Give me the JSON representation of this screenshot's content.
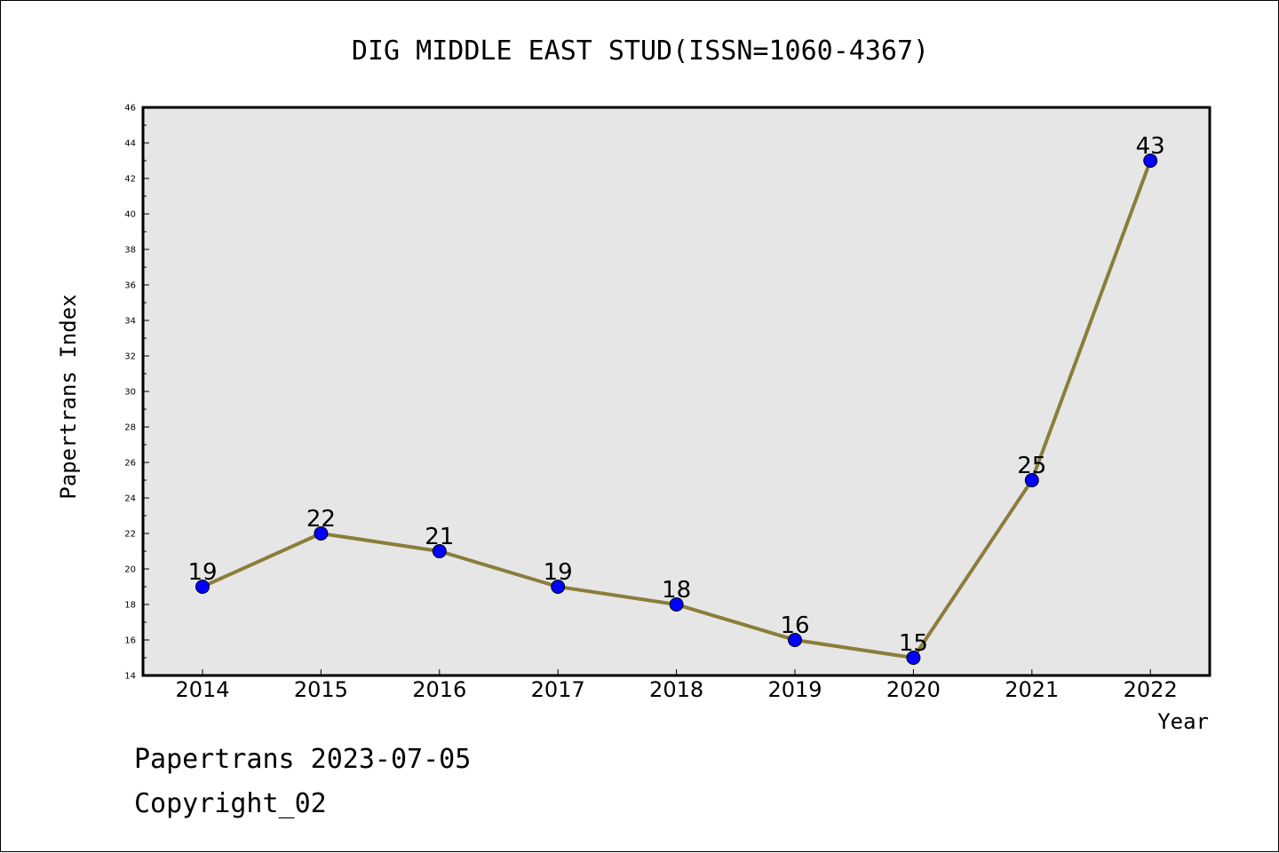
{
  "chart_data": {
    "type": "line",
    "title": "DIG MIDDLE EAST STUD(ISSN=1060-4367)",
    "xlabel": "Year",
    "ylabel": "Papertrans Index",
    "categories": [
      "2014",
      "2015",
      "2016",
      "2017",
      "2018",
      "2019",
      "2020",
      "2021",
      "2022"
    ],
    "series": [
      {
        "values": [
          19,
          22,
          21,
          19,
          18,
          16,
          15,
          25,
          43
        ]
      }
    ],
    "data_labels": [
      "19",
      "22",
      "21",
      "19",
      "18",
      "16",
      "15",
      "25",
      "43"
    ],
    "ylim": [
      14,
      46
    ],
    "y_ticks": [
      "14",
      "16",
      "18",
      "20",
      "22",
      "24",
      "26",
      "28",
      "30",
      "32",
      "34",
      "36",
      "38",
      "40",
      "42",
      "44",
      "46"
    ],
    "grid": false,
    "plot_background": "#e6e6e6",
    "line_color": "#8b7d3a",
    "marker_color": "#0000ff"
  },
  "footer": {
    "source": "Papertrans 2023-07-05",
    "copyright": "Copyright_02"
  }
}
